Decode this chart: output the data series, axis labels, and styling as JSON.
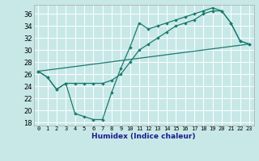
{
  "title": "",
  "xlabel": "Humidex (Indice chaleur)",
  "xlim": [
    -0.5,
    23.5
  ],
  "ylim": [
    17.5,
    37.5
  ],
  "yticks": [
    18,
    20,
    22,
    24,
    26,
    28,
    30,
    32,
    34,
    36
  ],
  "xticks": [
    0,
    1,
    2,
    3,
    4,
    5,
    6,
    7,
    8,
    9,
    10,
    11,
    12,
    13,
    14,
    15,
    16,
    17,
    18,
    19,
    20,
    21,
    22,
    23
  ],
  "bg_color": "#c8e8e8",
  "grid_color": "#a8d8d8",
  "line_color": "#1a7a6e",
  "line1_x": [
    0,
    1,
    2,
    3,
    4,
    5,
    6,
    7,
    8,
    9,
    10,
    11,
    12,
    13,
    14,
    15,
    16,
    17,
    18,
    19,
    20,
    21,
    22,
    23
  ],
  "line1_y": [
    26.5,
    25.5,
    23.5,
    24.5,
    19.5,
    19.0,
    18.5,
    18.5,
    23.0,
    27.0,
    30.5,
    34.5,
    33.5,
    34.0,
    34.5,
    35.0,
    35.5,
    36.0,
    36.5,
    37.0,
    36.5,
    34.5,
    31.5,
    31.0
  ],
  "line2_x": [
    0,
    1,
    2,
    3,
    4,
    5,
    6,
    7,
    8,
    9,
    10,
    11,
    12,
    13,
    14,
    15,
    16,
    17,
    18,
    19,
    20,
    21,
    22,
    23
  ],
  "line2_y": [
    26.5,
    25.5,
    23.5,
    24.5,
    24.5,
    24.5,
    24.5,
    24.5,
    25.0,
    26.0,
    28.0,
    30.0,
    31.0,
    32.0,
    33.0,
    34.0,
    34.5,
    35.0,
    36.0,
    36.5,
    36.5,
    34.5,
    31.5,
    31.0
  ],
  "line3_x": [
    0,
    23
  ],
  "line3_y": [
    26.5,
    31.0
  ]
}
